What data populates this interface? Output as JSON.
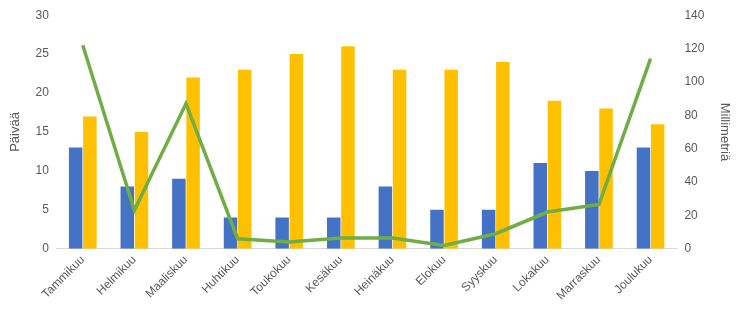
{
  "chart_data": {
    "type": "bar",
    "y_label": "Päivää",
    "y2_label": "Millimetriä",
    "categories": [
      "Tammikuu",
      "Helmikuu",
      "Maaliskuu",
      "Huhtikuu",
      "Toukokuu",
      "Kesäkuu",
      "Heinäkuu",
      "Elokuu",
      "Syyskuu",
      "Lokakuu",
      "Marraskuu",
      "Joulukuu"
    ],
    "series": [
      {
        "type": "bar",
        "color": "#4472c4",
        "values": [
          13,
          8,
          9,
          4,
          4,
          4,
          8,
          5,
          5,
          11,
          10,
          13
        ]
      },
      {
        "type": "bar",
        "color": "#ffc000",
        "values": [
          17,
          15,
          22,
          23,
          25,
          26,
          23,
          23,
          24,
          19,
          18,
          16
        ]
      },
      {
        "type": "line",
        "color": "#70ad47",
        "axis": "y2",
        "marker": "none",
        "line_style": "solid",
        "values": [
          122,
          23,
          87,
          6,
          4,
          6.5,
          6.5,
          2,
          9,
          22,
          26.5,
          114
        ]
      }
    ],
    "ylim": [
      0,
      30
    ],
    "yticks": [
      0,
      5,
      10,
      15,
      20,
      25,
      30
    ],
    "y2lim": [
      0,
      140
    ],
    "y2ticks": [
      0,
      20,
      40,
      60,
      80,
      100,
      120,
      140
    ],
    "grid": false,
    "legend": "none"
  }
}
